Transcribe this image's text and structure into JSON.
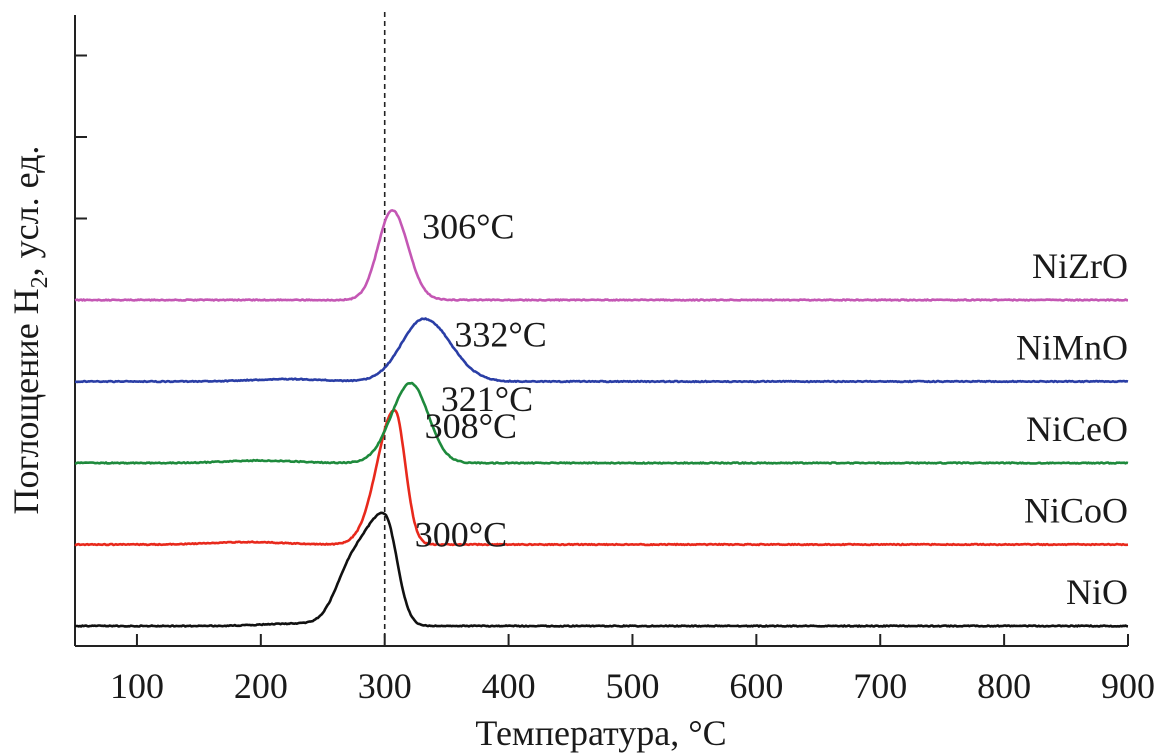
{
  "chart_data": {
    "type": "line",
    "xlabel": "Температура, °C",
    "ylabel": "Поглощение H₂, усл. ед.",
    "ylabel_parts": {
      "before": "Поглощение H",
      "sub": "2",
      "after": ", усл. ед."
    },
    "xlim": [
      50,
      900
    ],
    "x_ticks": [
      100,
      200,
      300,
      400,
      500,
      600,
      700,
      800,
      900
    ],
    "x_tick_labels": [
      "100",
      "200",
      "300",
      "400",
      "500",
      "600",
      "700",
      "800",
      "900"
    ],
    "reference_line_x": 300,
    "series": [
      {
        "name": "NiO",
        "color": "#111111",
        "peak_x": 300,
        "peak_label": "300°C",
        "offset": 0,
        "peak_height": 1.32,
        "width_left": 22,
        "width_right": 14,
        "shoulder": 0.45,
        "bump_x": 230,
        "bump_h": 0.03
      },
      {
        "name": "NiCoO",
        "color": "#e8291c",
        "peak_x": 308,
        "peak_label": "308°C",
        "offset": 1,
        "peak_height": 1.65,
        "width_left": 20,
        "width_right": 12,
        "shoulder": 0.0,
        "bump_x": 190,
        "bump_h": 0.03
      },
      {
        "name": "NiCeO",
        "color": "#1e8a3c",
        "peak_x": 321,
        "peak_label": "321°C",
        "offset": 2,
        "peak_height": 0.98,
        "width_left": 22,
        "width_right": 20,
        "shoulder": 0.0,
        "bump_x": 200,
        "bump_h": 0.03
      },
      {
        "name": "NiMnO",
        "color": "#2a3ea6",
        "peak_x": 332,
        "peak_label": "332°C",
        "offset": 3,
        "peak_height": 0.77,
        "width_left": 26,
        "width_right": 30,
        "shoulder": 0.0,
        "bump_x": 220,
        "bump_h": 0.03
      },
      {
        "name": "NiZrO",
        "color": "#c457b4",
        "peak_x": 306,
        "peak_label": "306°C",
        "offset": 4,
        "peak_height": 1.1,
        "width_left": 16,
        "width_right": 18,
        "shoulder": 0.0,
        "bump_x": 0,
        "bump_h": 0.0
      }
    ]
  }
}
